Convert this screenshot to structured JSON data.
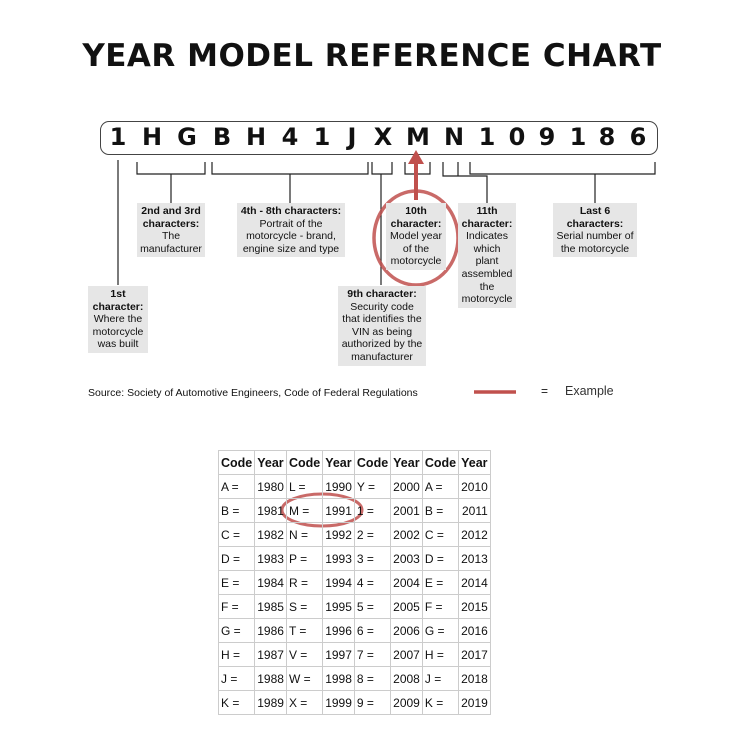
{
  "title": "YEAR MODEL REFERENCE CHART",
  "vin": [
    "1",
    "H",
    "G",
    "B",
    "H",
    "4",
    "1",
    "J",
    "X",
    "M",
    "N",
    "1",
    "0",
    "9",
    "1",
    "8",
    "6"
  ],
  "labels": {
    "first": {
      "head": "1st character:",
      "body": "Where the motorcycle was built"
    },
    "second_third": {
      "head": "2nd and 3rd characters:",
      "body": "The manufacturer"
    },
    "fourth_eighth": {
      "head": "4th - 8th characters:",
      "body": "Portrait of the motorcycle - brand, engine size and type"
    },
    "ninth": {
      "head": "9th character:",
      "body": "Security code that identifies the VIN as being authorized by the manufacturer"
    },
    "tenth": {
      "head": "10th character:",
      "body": "Model year of the motorcycle"
    },
    "eleventh": {
      "head": "11th character:",
      "body": "Indicates which plant assembled the motorcycle"
    },
    "last_six": {
      "head": "Last 6 characters:",
      "body": "Serial number of the motorcycle"
    }
  },
  "source": "Source:  Society of Automotive Engineers, Code of Federal Regulations",
  "legend": {
    "equals": "=",
    "label": "Example",
    "color": "#c0504d"
  },
  "highlight_color": "#c0504d",
  "table": {
    "headers": [
      "Code",
      "Year",
      "Code",
      "Year",
      "Code",
      "Year",
      "Code",
      "Year"
    ],
    "rows": [
      [
        "A =",
        "1980",
        "L =",
        "1990",
        "Y =",
        "2000",
        "A =",
        "2010"
      ],
      [
        "B =",
        "1981",
        "M =",
        "1991",
        "1 =",
        "2001",
        "B =",
        "2011"
      ],
      [
        "C =",
        "1982",
        "N =",
        "1992",
        "2 =",
        "2002",
        "C =",
        "2012"
      ],
      [
        "D =",
        "1983",
        "P =",
        "1993",
        "3 =",
        "2003",
        "D =",
        "2013"
      ],
      [
        "E =",
        "1984",
        "R =",
        "1994",
        "4 =",
        "2004",
        "E =",
        "2014"
      ],
      [
        "F =",
        "1985",
        "S =",
        "1995",
        "5 =",
        "2005",
        "F =",
        "2015"
      ],
      [
        "G =",
        "1986",
        "T =",
        "1996",
        "6 =",
        "2006",
        "G =",
        "2016"
      ],
      [
        "H =",
        "1987",
        "V =",
        "1997",
        "7 =",
        "2007",
        "H =",
        "2017"
      ],
      [
        "J =",
        "1988",
        "W =",
        "1998",
        "8 =",
        "2008",
        "J =",
        "2018"
      ],
      [
        "K =",
        "1989",
        "X =",
        "1999",
        "9 =",
        "2009",
        "K =",
        "2019"
      ]
    ]
  }
}
